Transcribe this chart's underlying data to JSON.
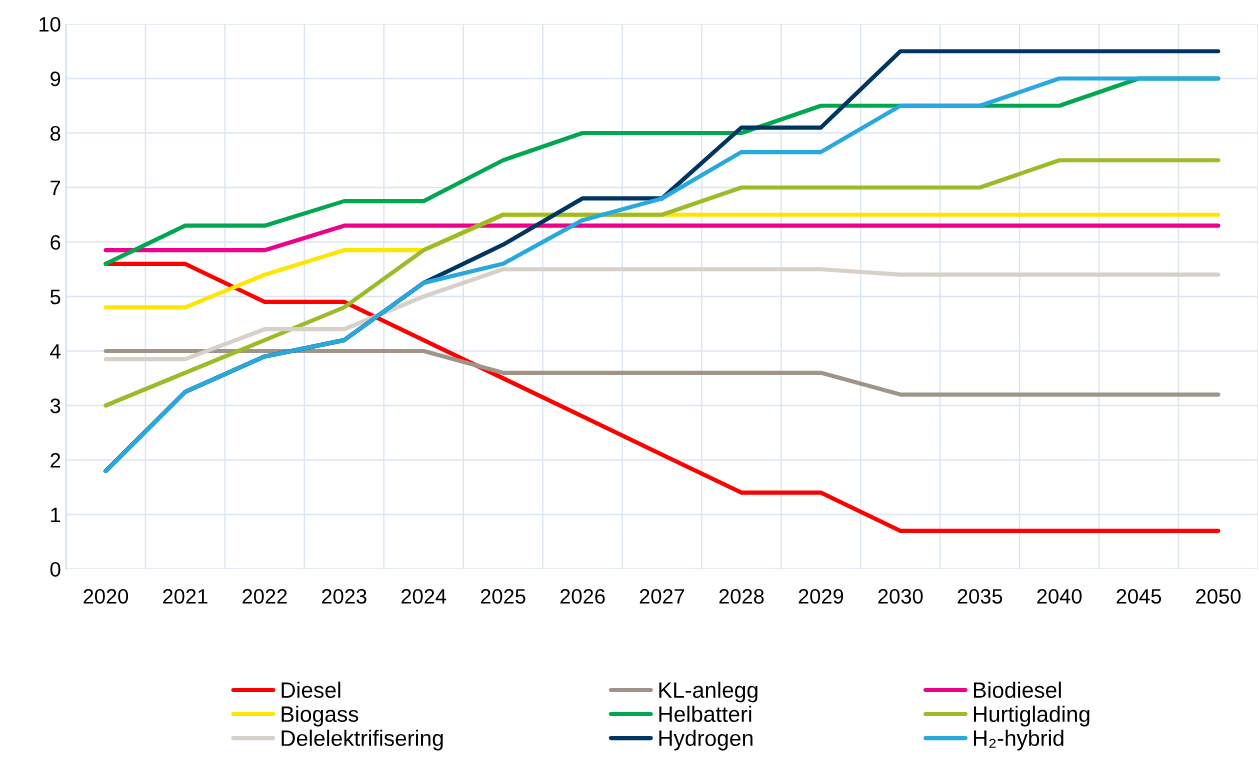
{
  "chart_data": {
    "type": "line",
    "categories": [
      "2020",
      "2021",
      "2022",
      "2023",
      "2024",
      "2025",
      "2026",
      "2027",
      "2028",
      "2029",
      "2030",
      "2035",
      "2040",
      "2045",
      "2050"
    ],
    "ylim": [
      0,
      10
    ],
    "yticks": [
      0,
      1,
      2,
      3,
      4,
      5,
      6,
      7,
      8,
      9,
      10
    ],
    "grid": true,
    "legend": "bottom",
    "marker": "none",
    "line_style": "solid",
    "series": [
      {
        "name": "Diesel",
        "color": "#ff0000",
        "values": [
          5.6,
          5.6,
          4.9,
          4.9,
          4.2,
          3.5,
          2.8,
          2.1,
          1.4,
          1.4,
          0.7,
          0.7,
          0.7,
          0.7,
          0.7
        ]
      },
      {
        "name": "KL-anlegg",
        "color": "#a09488",
        "values": [
          4.0,
          4.0,
          4.0,
          4.0,
          4.0,
          3.6,
          3.6,
          3.6,
          3.6,
          3.6,
          3.2,
          3.2,
          3.2,
          3.2,
          3.2
        ]
      },
      {
        "name": "Biodiesel",
        "color": "#ec008c",
        "values": [
          5.85,
          5.85,
          5.85,
          6.3,
          6.3,
          6.3,
          6.3,
          6.3,
          6.3,
          6.3,
          6.3,
          6.3,
          6.3,
          6.3,
          6.3
        ]
      },
      {
        "name": "Biogass",
        "color": "#ffe600",
        "values": [
          4.8,
          4.8,
          5.4,
          5.85,
          5.85,
          6.5,
          6.5,
          6.5,
          6.5,
          6.5,
          6.5,
          6.5,
          6.5,
          6.5,
          6.5
        ]
      },
      {
        "name": "Helbatteri",
        "color": "#00a650",
        "values": [
          5.6,
          6.3,
          6.3,
          6.75,
          6.75,
          7.5,
          8.0,
          8.0,
          8.0,
          8.5,
          8.5,
          8.5,
          8.5,
          9.0,
          9.0
        ]
      },
      {
        "name": "Hurtiglading",
        "color": "#9bbb28",
        "values": [
          3.0,
          3.6,
          4.2,
          4.8,
          5.85,
          6.5,
          6.5,
          6.5,
          7.0,
          7.0,
          7.0,
          7.0,
          7.5,
          7.5,
          7.5
        ]
      },
      {
        "name": "Delelektrifisering",
        "color": "#d6d0c8",
        "values": [
          3.85,
          3.85,
          4.4,
          4.4,
          5.0,
          5.5,
          5.5,
          5.5,
          5.5,
          5.5,
          5.4,
          5.4,
          5.4,
          5.4,
          5.4
        ]
      },
      {
        "name": "Hydrogen",
        "color": "#003562",
        "values": [
          1.8,
          3.25,
          3.9,
          4.2,
          5.25,
          5.95,
          6.8,
          6.8,
          8.1,
          8.1,
          9.5,
          9.5,
          9.5,
          9.5,
          9.5
        ]
      },
      {
        "name": "H₂-hybrid",
        "color": "#29a8e0",
        "values": [
          1.8,
          3.25,
          3.9,
          4.2,
          5.25,
          5.6,
          6.4,
          6.8,
          7.65,
          7.65,
          8.5,
          8.5,
          9.0,
          9.0,
          9.0
        ]
      }
    ]
  }
}
